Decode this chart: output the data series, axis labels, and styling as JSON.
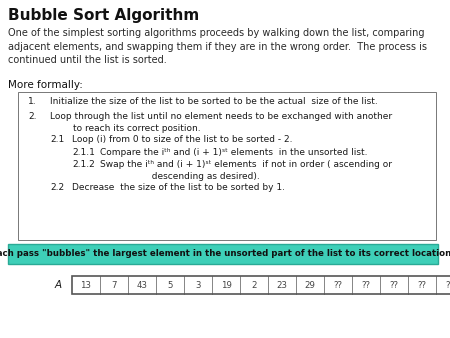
{
  "title": "Bubble Sort Algorithm",
  "intro_text": "One of the simplest sorting algorithms proceeds by walking down the list, comparing\nadjacent elements, and swapping them if they are in the wrong order.  The process is\ncontinued until the list is sorted.",
  "more_formally": "More formally:",
  "highlight_text": "Each pass \"bubbles\" the largest element in the unsorted part of the list to its correct location.",
  "highlight_bg": "#3ecfb8",
  "highlight_border": "#2aaa96",
  "array_label": "A",
  "array_values": [
    "13",
    "7",
    "43",
    "5",
    "3",
    "19",
    "2",
    "23",
    "29",
    "??",
    "??",
    "??",
    "??",
    "??"
  ],
  "bg_color": "#ffffff",
  "box_bg": "#ffffff",
  "text_color": "#1a1a1a",
  "title_fontsize": 11,
  "body_fontsize": 7.0,
  "small_fontsize": 6.2
}
